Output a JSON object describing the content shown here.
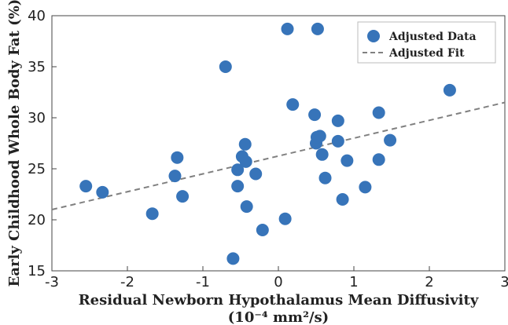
{
  "chart_data": {
    "type": "scatter",
    "xlabel": "Residual Newborn Hypothalamus Mean Diffusivity",
    "xlabel_units": "(10⁻⁴ mm²/s)",
    "ylabel": "Early Childhood Whole Body Fat (%)",
    "xlim": [
      -3,
      3
    ],
    "ylim": [
      15,
      40
    ],
    "xticks": [
      -3,
      -2,
      -1,
      0,
      1,
      2,
      3
    ],
    "yticks": [
      15,
      20,
      25,
      30,
      35,
      40
    ],
    "xtick_labels": [
      "-3",
      "-2",
      "-1",
      "0",
      "1",
      "2",
      "3"
    ],
    "ytick_labels": [
      "15",
      "20",
      "25",
      "30",
      "35",
      "40"
    ],
    "grid": false,
    "legend_position": "top-right",
    "series": [
      {
        "name": "Adjusted Data",
        "kind": "scatter",
        "color": "#3774b9",
        "points": [
          {
            "x": -2.55,
            "y": 23.3
          },
          {
            "x": -2.33,
            "y": 22.7
          },
          {
            "x": -1.67,
            "y": 20.6
          },
          {
            "x": -1.37,
            "y": 24.3
          },
          {
            "x": -1.34,
            "y": 26.1
          },
          {
            "x": -1.27,
            "y": 22.3
          },
          {
            "x": -0.7,
            "y": 35.0
          },
          {
            "x": -0.6,
            "y": 16.2
          },
          {
            "x": -0.54,
            "y": 24.9
          },
          {
            "x": -0.54,
            "y": 23.3
          },
          {
            "x": -0.48,
            "y": 26.2
          },
          {
            "x": -0.44,
            "y": 27.4
          },
          {
            "x": -0.43,
            "y": 25.7
          },
          {
            "x": -0.42,
            "y": 21.3
          },
          {
            "x": -0.3,
            "y": 24.5
          },
          {
            "x": -0.21,
            "y": 19.0
          },
          {
            "x": 0.09,
            "y": 20.1
          },
          {
            "x": 0.12,
            "y": 38.7
          },
          {
            "x": 0.19,
            "y": 31.3
          },
          {
            "x": 0.48,
            "y": 30.3
          },
          {
            "x": 0.5,
            "y": 27.5
          },
          {
            "x": 0.51,
            "y": 28.1
          },
          {
            "x": 0.52,
            "y": 38.7
          },
          {
            "x": 0.55,
            "y": 28.2
          },
          {
            "x": 0.58,
            "y": 26.4
          },
          {
            "x": 0.62,
            "y": 24.1
          },
          {
            "x": 0.79,
            "y": 29.7
          },
          {
            "x": 0.79,
            "y": 27.7
          },
          {
            "x": 0.85,
            "y": 22.0
          },
          {
            "x": 0.91,
            "y": 25.8
          },
          {
            "x": 1.15,
            "y": 23.2
          },
          {
            "x": 1.33,
            "y": 30.5
          },
          {
            "x": 1.33,
            "y": 25.9
          },
          {
            "x": 1.48,
            "y": 27.8
          },
          {
            "x": 2.27,
            "y": 32.7
          }
        ]
      },
      {
        "name": "Adjusted Fit",
        "kind": "line",
        "style": "dashed",
        "color": "#808080",
        "x": [
          -3,
          3
        ],
        "y": [
          21.0,
          31.5
        ]
      }
    ]
  }
}
